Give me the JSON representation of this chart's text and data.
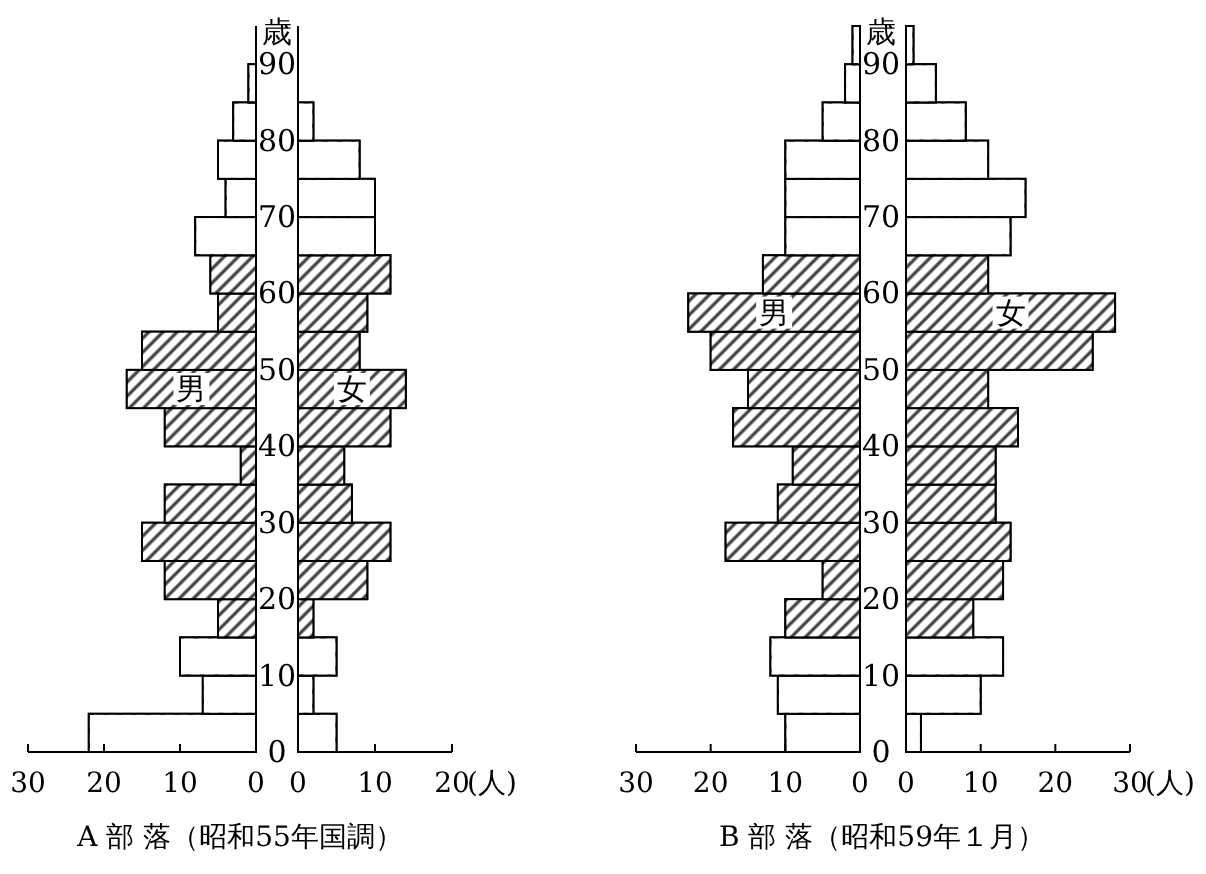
{
  "chart_data": [
    {
      "type": "bar",
      "orientation": "horizontal",
      "title": "A 部 落（昭和55年国調）",
      "ylabel": "歳",
      "x": [
        2.5,
        7.5,
        12.5,
        17.5,
        22.5,
        27.5,
        32.5,
        37.5,
        42.5,
        47.5,
        52.5,
        57.5,
        62.5,
        67.5,
        72.5,
        77.5,
        82.5,
        87.5,
        92.5
      ],
      "xlim": [
        30,
        0
      ],
      "xticks": [
        30,
        20,
        10,
        0
      ],
      "ylim": [
        0,
        95
      ],
      "yticks": [
        0,
        10,
        20,
        30,
        40,
        50,
        60,
        70,
        80,
        90
      ],
      "series": [
        {
          "name": "男",
          "values": [
            22,
            7,
            10,
            5,
            12,
            15,
            12,
            2,
            12,
            17,
            15,
            5,
            6,
            8,
            4,
            5,
            3,
            1,
            0
          ],
          "colors": [
            "#ffffff",
            "#ffffff",
            "#ffffff",
            "#404040",
            "#404040",
            "#404040",
            "#404040",
            "#404040",
            "#404040",
            "#404040",
            "#404040",
            "#404040",
            "#404040",
            "#ffffff",
            "#ffffff",
            "#ffffff",
            "#ffffff",
            "#ffffff",
            "#ffffff"
          ]
        }
      ]
    },
    {
      "type": "bar",
      "orientation": "horizontal",
      "xlabel": "(人)",
      "tick_labels": "x",
      "x": [
        2.5,
        7.5,
        12.5,
        17.5,
        22.5,
        27.5,
        32.5,
        37.5,
        42.5,
        47.5,
        52.5,
        57.5,
        62.5,
        67.5,
        72.5,
        77.5,
        82.5,
        87.5,
        92.5
      ],
      "xlim": [
        0,
        20
      ],
      "xticks": [
        0,
        10,
        20
      ],
      "ylim": [
        0,
        95
      ],
      "yticks": [
        0,
        10,
        20,
        30,
        40,
        50,
        60,
        70,
        80,
        90
      ],
      "series": [
        {
          "name": "女",
          "values": [
            5,
            2,
            5,
            2,
            9,
            12,
            7,
            6,
            12,
            14,
            8,
            9,
            12,
            10,
            10,
            8,
            2,
            0,
            0
          ],
          "colors": [
            "#ffffff",
            "#ffffff",
            "#ffffff",
            "#404040",
            "#404040",
            "#404040",
            "#404040",
            "#404040",
            "#404040",
            "#404040",
            "#404040",
            "#404040",
            "#404040",
            "#ffffff",
            "#ffffff",
            "#ffffff",
            "#ffffff",
            "#ffffff",
            "#ffffff"
          ]
        }
      ]
    },
    {
      "type": "bar",
      "orientation": "horizontal",
      "title": "B 部 落（昭和59年１月）",
      "ylabel": "歳",
      "x": [
        2.5,
        7.5,
        12.5,
        17.5,
        22.5,
        27.5,
        32.5,
        37.5,
        42.5,
        47.5,
        52.5,
        57.5,
        62.5,
        67.5,
        72.5,
        77.5,
        82.5,
        87.5,
        92.5
      ],
      "xlim": [
        30,
        0
      ],
      "xticks": [
        30,
        20,
        10,
        0
      ],
      "ylim": [
        0,
        95
      ],
      "yticks": [
        0,
        10,
        20,
        30,
        40,
        50,
        60,
        70,
        80,
        90
      ],
      "series": [
        {
          "name": "男",
          "values": [
            10,
            11,
            12,
            10,
            5,
            18,
            11,
            9,
            17,
            15,
            20,
            23,
            13,
            10,
            10,
            10,
            5,
            2,
            1
          ],
          "colors": [
            "#ffffff",
            "#ffffff",
            "#ffffff",
            "#404040",
            "#404040",
            "#404040",
            "#404040",
            "#404040",
            "#404040",
            "#404040",
            "#404040",
            "#404040",
            "#404040",
            "#ffffff",
            "#ffffff",
            "#ffffff",
            "#ffffff",
            "#ffffff",
            "#ffffff"
          ]
        }
      ]
    },
    {
      "type": "bar",
      "orientation": "horizontal",
      "xlabel": "(人)",
      "tick_labels": "x",
      "x": [
        2.5,
        7.5,
        12.5,
        17.5,
        22.5,
        27.5,
        32.5,
        37.5,
        42.5,
        47.5,
        52.5,
        57.5,
        62.5,
        67.5,
        72.5,
        77.5,
        82.5,
        87.5,
        92.5
      ],
      "xlim": [
        0,
        30
      ],
      "xticks": [
        0,
        10,
        20,
        30
      ],
      "ylim": [
        0,
        95
      ],
      "yticks": [
        0,
        10,
        20,
        30,
        40,
        50,
        60,
        70,
        80,
        90
      ],
      "series": [
        {
          "name": "女",
          "values": [
            2,
            10,
            13,
            9,
            13,
            14,
            12,
            12,
            15,
            11,
            25,
            28,
            11,
            14,
            16,
            11,
            8,
            4,
            1
          ],
          "colors": [
            "#ffffff",
            "#ffffff",
            "#ffffff",
            "#404040",
            "#404040",
            "#404040",
            "#404040",
            "#404040",
            "#404040",
            "#404040",
            "#404040",
            "#404040",
            "#404040",
            "#ffffff",
            "#ffffff",
            "#ffffff",
            "#ffffff",
            "#ffffff",
            "#ffffff"
          ]
        }
      ]
    }
  ]
}
